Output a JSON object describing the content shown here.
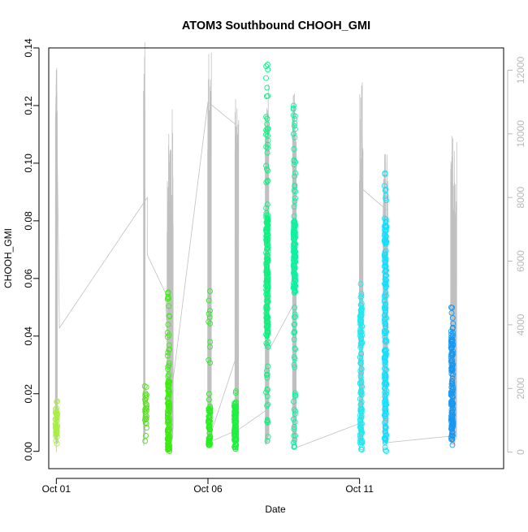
{
  "chart_data": {
    "type": "scatter",
    "title": "ATOM3 Southbound CHOOH_GMI",
    "xlabel": "Date",
    "ylabel": "CHOOH_GMI",
    "x_axis": {
      "unit": "day of October",
      "range": [
        0.75,
        15.75
      ],
      "ticks": [
        {
          "value": 1,
          "label": "Oct 01"
        },
        {
          "value": 6,
          "label": "Oct 06"
        },
        {
          "value": 11,
          "label": "Oct 11"
        }
      ]
    },
    "y_left": {
      "range": [
        -0.006,
        0.14
      ],
      "ticks": [
        {
          "value": 0.0,
          "label": "0.00"
        },
        {
          "value": 0.02,
          "label": "0.02"
        },
        {
          "value": 0.04,
          "label": "0.04"
        },
        {
          "value": 0.06,
          "label": "0.06"
        },
        {
          "value": 0.08,
          "label": "0.08"
        },
        {
          "value": 0.1,
          "label": "0.10"
        },
        {
          "value": 0.12,
          "label": "0.12"
        },
        {
          "value": 0.14,
          "label": "0.14"
        }
      ]
    },
    "y_right": {
      "range": [
        -520,
        12700
      ],
      "color": "#b8b8b8",
      "ticks": [
        {
          "value": 0,
          "label": "0"
        },
        {
          "value": 2000,
          "label": "2000"
        },
        {
          "value": 4000,
          "label": "4000"
        },
        {
          "value": 6000,
          "label": "6000"
        },
        {
          "value": 8000,
          "label": "8000"
        },
        {
          "value": 10000,
          "label": "10000"
        },
        {
          "value": 12000,
          "label": "12000"
        }
      ]
    },
    "grid": false,
    "legend": "none",
    "altitude_trace_color": "#c0c0c0",
    "clusters": [
      {
        "x": 1.0,
        "color": "#a8f040",
        "ymin": 0.0,
        "ymax": 0.018,
        "dense_min": 0.004,
        "dense_max": 0.014,
        "n": 40
      },
      {
        "x": 3.95,
        "color": "#58e020",
        "ymin": 0.003,
        "ymax": 0.025,
        "dense_min": 0.008,
        "dense_max": 0.02,
        "n": 30
      },
      {
        "x": 4.7,
        "color": "#3cec10",
        "ymin": 0.0,
        "ymax": 0.06,
        "dense_min": 0.0,
        "dense_max": 0.025,
        "n": 130
      },
      {
        "x": 6.05,
        "color": "#28ee20",
        "ymin": 0.002,
        "ymax": 0.057,
        "dense_min": 0.002,
        "dense_max": 0.015,
        "n": 70
      },
      {
        "x": 6.9,
        "color": "#20f040",
        "ymin": 0.0,
        "ymax": 0.021,
        "dense_min": 0.002,
        "dense_max": 0.016,
        "n": 110
      },
      {
        "x": 7.95,
        "color": "#10f080",
        "ymin": 0.0,
        "ymax": 0.135,
        "dense_min": 0.04,
        "dense_max": 0.082,
        "n": 220
      },
      {
        "x": 8.85,
        "color": "#10f0a0",
        "ymin": 0.001,
        "ymax": 0.12,
        "dense_min": 0.055,
        "dense_max": 0.08,
        "n": 200
      },
      {
        "x": 11.05,
        "color": "#20e8f0",
        "ymin": 0.0,
        "ymax": 0.06,
        "dense_min": 0.0,
        "dense_max": 0.05,
        "n": 120
      },
      {
        "x": 11.85,
        "color": "#10e0ff",
        "ymin": 0.0,
        "ymax": 0.1,
        "dense_min": 0.0,
        "dense_max": 0.08,
        "n": 200
      },
      {
        "x": 14.05,
        "color": "#1898f0",
        "ymin": 0.002,
        "ymax": 0.05,
        "dense_min": 0.004,
        "dense_max": 0.04,
        "n": 160
      }
    ],
    "altitude_bursts": [
      {
        "x": 1.0,
        "width": 0.06,
        "max": 12200
      },
      {
        "x": 3.9,
        "width": 0.05,
        "max": 12900
      },
      {
        "x": 4.75,
        "width": 0.2,
        "max": 10900
      },
      {
        "x": 6.05,
        "width": 0.12,
        "max": 12900
      },
      {
        "x": 6.95,
        "width": 0.12,
        "max": 11200
      },
      {
        "x": 7.95,
        "width": 0.12,
        "max": 11700
      },
      {
        "x": 8.85,
        "width": 0.12,
        "max": 11300
      },
      {
        "x": 11.05,
        "width": 0.12,
        "max": 12000
      },
      {
        "x": 11.85,
        "width": 0.15,
        "max": 9500
      },
      {
        "x": 14.1,
        "width": 0.2,
        "max": 10100
      }
    ],
    "altitude_connectors": [
      [
        1.0,
        0
      ],
      [
        1.0,
        12000
      ],
      [
        1.1,
        3900
      ],
      [
        4.0,
        8000
      ],
      [
        4.0,
        6200
      ],
      [
        4.6,
        5000
      ],
      [
        4.8,
        500
      ],
      [
        4.75,
        1500
      ],
      [
        6.0,
        11000
      ],
      [
        6.9,
        10300
      ],
      [
        6.9,
        2900
      ],
      [
        6.0,
        300
      ],
      [
        7.0,
        700
      ],
      [
        7.9,
        1300
      ],
      [
        7.9,
        3000
      ],
      [
        8.8,
        4600
      ],
      [
        8.8,
        100
      ],
      [
        11.0,
        900
      ],
      [
        11.05,
        8300
      ],
      [
        11.9,
        7600
      ],
      [
        11.9,
        300
      ],
      [
        14.0,
        500
      ]
    ]
  }
}
